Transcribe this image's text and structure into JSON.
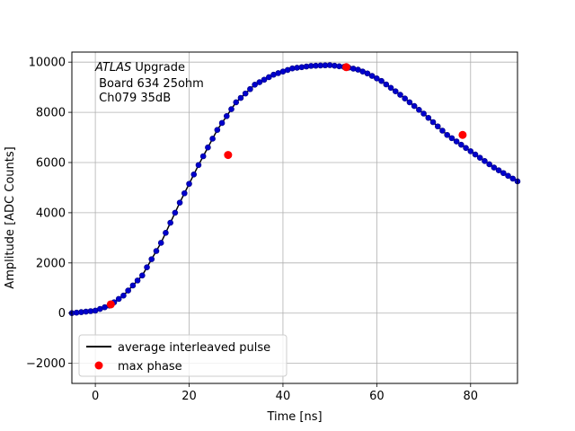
{
  "chart_data": {
    "type": "scatter",
    "xlabel": "Time [ns]",
    "ylabel": "Amplitude [ADC Counts]",
    "xlim": [
      -5,
      90
    ],
    "ylim": [
      -2800,
      10400
    ],
    "xticks": [
      0,
      20,
      40,
      60,
      80
    ],
    "yticks": [
      -2000,
      0,
      2000,
      4000,
      6000,
      8000,
      10000
    ],
    "xtick_labels": [
      "0",
      "20",
      "40",
      "60",
      "80"
    ],
    "ytick_labels": [
      "−2000",
      "0",
      "2000",
      "4000",
      "6000",
      "8000",
      "10000"
    ],
    "grid": true,
    "legend_placement": "lower-left",
    "annotation": {
      "line1_italic": "ATLAS",
      "line1_rest": " Upgrade",
      "line2": " Board 634 25ohm",
      "line3": " Ch079 35dB"
    },
    "legend": [
      {
        "label": "average interleaved pulse",
        "marker": "line",
        "color": "#000000"
      },
      {
        "label": "max phase",
        "marker": "circle",
        "color": "#ff0000"
      }
    ],
    "curve": {
      "x": [
        -5,
        0,
        3,
        6,
        10,
        14,
        18,
        22,
        26,
        30,
        34,
        38,
        42,
        46,
        50,
        53.5,
        56,
        58,
        61,
        65,
        70,
        75,
        80,
        85,
        90
      ],
      "y": [
        0,
        100,
        300,
        700,
        1500,
        2800,
        4400,
        5900,
        7300,
        8400,
        9100,
        9500,
        9750,
        9850,
        9880,
        9800,
        9700,
        9550,
        9250,
        8700,
        7950,
        7100,
        6450,
        5800,
        5250
      ]
    },
    "sample_color": "#0000cc",
    "sample_edge_color": "#000080",
    "sample_step_ns": 1.0,
    "series": [
      {
        "name": "max phase",
        "color": "#ff0000",
        "x": [
          3.3,
          28.3,
          53.5,
          78.3
        ],
        "y": [
          350,
          6300,
          9800,
          7100
        ]
      }
    ]
  }
}
